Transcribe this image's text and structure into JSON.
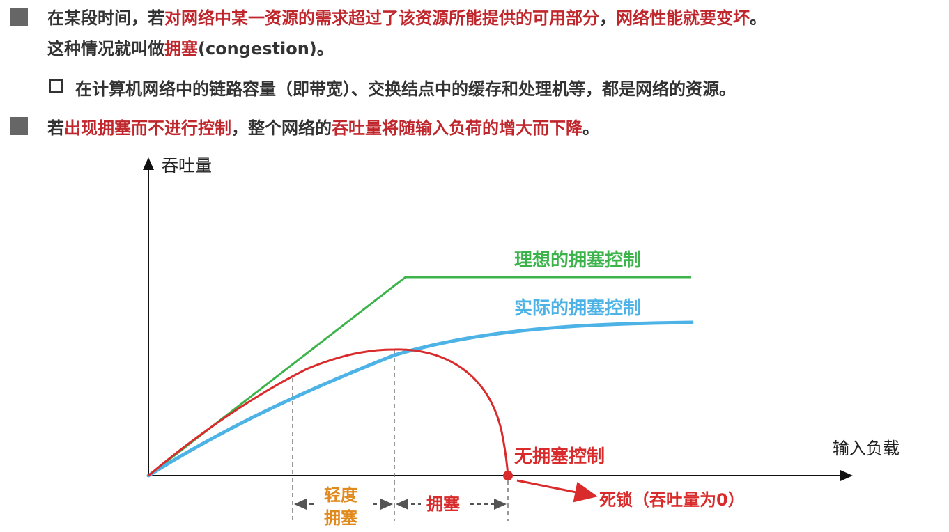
{
  "bullets": [
    {
      "line1_pre": "在某段时间，若",
      "line1_red": "对网络中某一资源的需求超过了该资源所能提供的可用部分",
      "line1_mid": "，",
      "line1_red2": "网络性能就要变坏",
      "line1_post": "。",
      "line2_pre": "这种情况就叫做",
      "line2_red": "拥塞",
      "line2_post": "(congestion)。"
    },
    {
      "sub_text": "在计算机网络中的链路容量（即带宽）、交换结点中的缓存和处理机等，都是网络的资源。"
    },
    {
      "pre": "若",
      "red1": "出现拥塞而不进行控制",
      "mid": "，整个网络的",
      "red2": "吞吐量将随输入负荷的增大而下降",
      "post": "。"
    }
  ],
  "chart_data": {
    "type": "line",
    "title": "",
    "ylabel": "吞吐量",
    "xlabel": "输入负载",
    "series": [
      {
        "name": "理想的拥塞控制",
        "color": "#3cb44b"
      },
      {
        "name": "实际的拥塞控制",
        "color": "#4db3e6"
      },
      {
        "name": "无拥塞控制",
        "color": "#d92b2b"
      }
    ],
    "regions": [
      {
        "label_line1": "轻度",
        "label_line2": "拥塞",
        "color": "#e08a1e"
      },
      {
        "label": "拥塞",
        "color": "#d92b2b"
      }
    ],
    "deadlock_label": "死锁（吞吐量为0）",
    "deadlock_color": "#d92b2b"
  }
}
